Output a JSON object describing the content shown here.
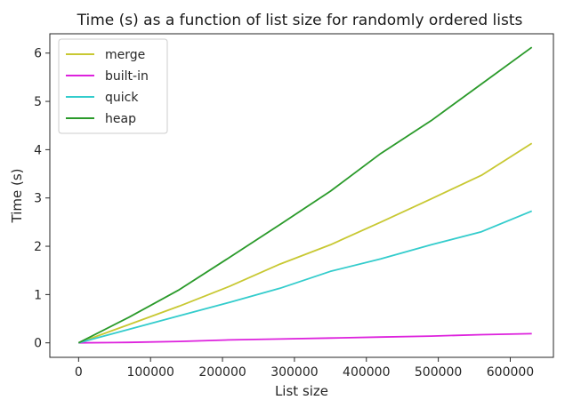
{
  "chart_data": {
    "type": "line",
    "title": "Time (s) as a function of list size for randomly ordered lists",
    "xlabel": "List size",
    "ylabel": "Time (s)",
    "xlim": [
      -40000,
      660000
    ],
    "ylim": [
      -0.3,
      6.4
    ],
    "xticks": [
      0,
      100000,
      200000,
      300000,
      400000,
      500000,
      600000
    ],
    "xtick_labels": [
      "0",
      "100000",
      "200000",
      "300000",
      "400000",
      "500000",
      "600000"
    ],
    "yticks": [
      0,
      1,
      2,
      3,
      4,
      5,
      6
    ],
    "ytick_labels": [
      "0",
      "1",
      "2",
      "3",
      "4",
      "5",
      "6"
    ],
    "grid": false,
    "legend_position": "top-left",
    "x": [
      0,
      70000,
      140000,
      210000,
      280000,
      350000,
      420000,
      490000,
      560000,
      630000
    ],
    "series": [
      {
        "name": "merge",
        "color": "#c8c832",
        "values": [
          0.0,
          0.38,
          0.76,
          1.17,
          1.63,
          2.03,
          2.5,
          2.98,
          3.47,
          4.13
        ]
      },
      {
        "name": "built-in",
        "color": "#dd22dd",
        "values": [
          0.0,
          0.01,
          0.03,
          0.06,
          0.08,
          0.1,
          0.12,
          0.14,
          0.17,
          0.19
        ]
      },
      {
        "name": "quick",
        "color": "#33cccc",
        "values": [
          0.0,
          0.28,
          0.56,
          0.84,
          1.13,
          1.48,
          1.74,
          2.03,
          2.3,
          2.73
        ]
      },
      {
        "name": "heap",
        "color": "#2a9a2a",
        "values": [
          0.0,
          0.53,
          1.1,
          1.77,
          2.45,
          3.14,
          3.92,
          4.6,
          5.36,
          6.12
        ]
      }
    ]
  }
}
